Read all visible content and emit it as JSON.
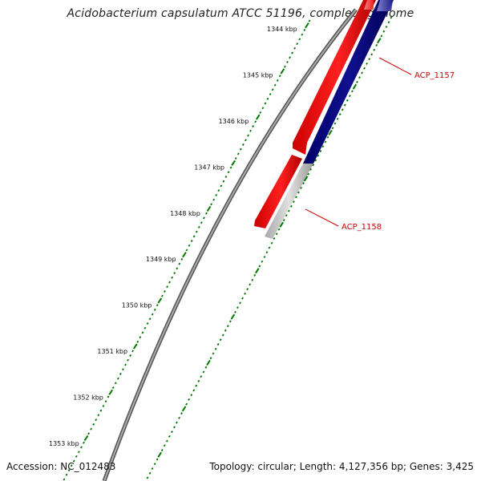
{
  "title": "Acidobacterium capsulatum ATCC 51196, complete genome",
  "accession_text": "Accession: NC_012483",
  "stats_text": "Topology: circular; Length: 4,127,356 bp; Genes: 3,425",
  "kbp_labels": [
    "1344 kbp",
    "1345 kbp",
    "1346 kbp",
    "1347 kbp",
    "1348 kbp",
    "1349 kbp",
    "1350 kbp",
    "1351 kbp",
    "1352 kbp",
    "1353 kbp"
  ],
  "genes": [
    {
      "name": "ACP_1157",
      "strand": "forward",
      "color": "#ff0000",
      "complement_color": "#000080"
    },
    {
      "name": "ACP_1158",
      "strand": "forward",
      "color": "#ff0000",
      "complement_color": "#b8b8b8"
    }
  ],
  "colors": {
    "backbone": "#777777",
    "ticks": "#007700",
    "label": "#cc0000"
  }
}
